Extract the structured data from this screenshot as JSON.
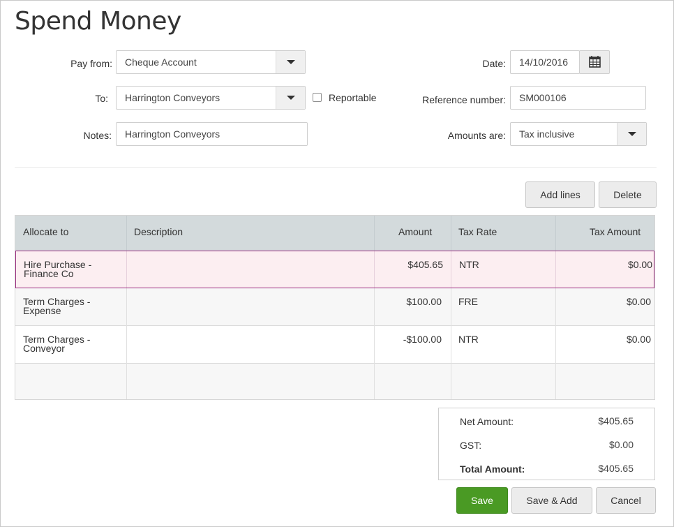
{
  "page": {
    "title": "Spend Money"
  },
  "form": {
    "pay_from_label": "Pay from:",
    "pay_from_value": "Cheque Account",
    "to_label": "To:",
    "to_value": "Harrington Conveyors",
    "reportable_label": "Reportable",
    "notes_label": "Notes:",
    "notes_value": "Harrington Conveyors",
    "date_label": "Date:",
    "date_value": "14/10/2016",
    "reference_label": "Reference number:",
    "reference_value": "SM000106",
    "amounts_label": "Amounts are:",
    "amounts_value": "Tax inclusive"
  },
  "toolbar": {
    "add_lines_label": "Add lines",
    "delete_label": "Delete"
  },
  "table": {
    "columns": [
      "Allocate to",
      "Description",
      "Amount",
      "Tax Rate",
      "Tax Amount"
    ],
    "rows": [
      {
        "allocate_line1": "Hire Purchase -",
        "allocate_line2": "Finance Co",
        "description": "",
        "amount": "$405.65",
        "tax_rate": "NTR",
        "tax_amount": "$0.00"
      },
      {
        "allocate_line1": "Term Charges -",
        "allocate_line2": "Expense",
        "description": "",
        "amount": "$100.00",
        "tax_rate": "FRE",
        "tax_amount": "$0.00"
      },
      {
        "allocate_line1": "Term Charges -",
        "allocate_line2": "Conveyor",
        "description": "",
        "amount": "-$100.00",
        "tax_rate": "NTR",
        "tax_amount": "$0.00"
      }
    ]
  },
  "totals": {
    "net_label": "Net Amount:",
    "net_value": "$405.65",
    "gst_label": "GST:",
    "gst_value": "$0.00",
    "total_label": "Total Amount:",
    "total_value": "$405.65"
  },
  "actions": {
    "save_label": "Save",
    "save_add_label": "Save & Add",
    "cancel_label": "Cancel"
  },
  "icons": {
    "calendar": "calendar-icon",
    "dropdown": "chevron-down-icon",
    "checkbox": "checkbox-unchecked"
  },
  "colors": {
    "primary_button": "#4a9a24",
    "selected_row_border": "#9b2a7f",
    "selected_row_bg": "#fceef1",
    "table_header_bg": "#d3dadc"
  }
}
